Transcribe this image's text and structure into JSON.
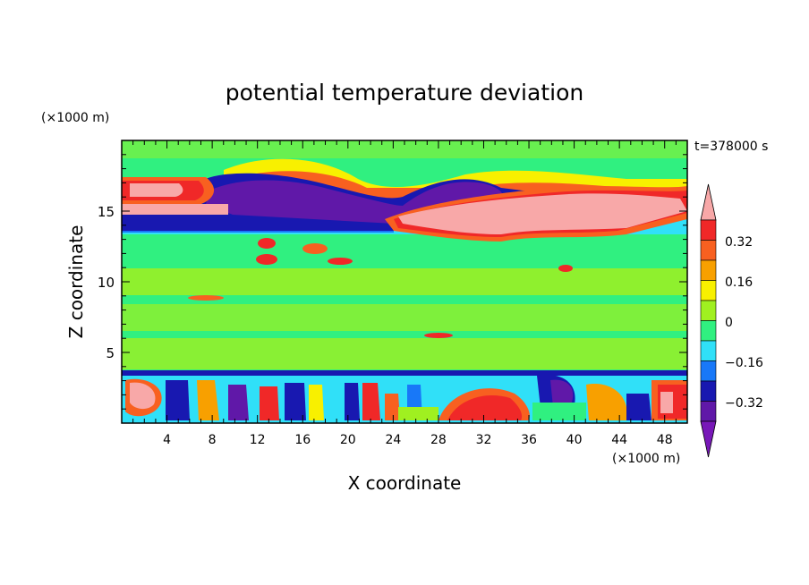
{
  "chart_data": {
    "type": "heatmap",
    "title": "potential temperature deviation",
    "time_label": "t=378000 s",
    "xlabel": "X coordinate",
    "ylabel": "Z coordinate",
    "x_unit": "(×1000 m)",
    "y_unit": "(×1000 m)",
    "xlim": [
      0,
      50
    ],
    "ylim": [
      0,
      20
    ],
    "x_ticks": [
      "4",
      "8",
      "12",
      "16",
      "20",
      "24",
      "28",
      "32",
      "36",
      "40",
      "44",
      "48"
    ],
    "y_ticks": [
      "5",
      "10",
      "15"
    ],
    "colorbar": {
      "labels": [
        "0.32",
        "0.16",
        "0",
        "−0.16",
        "−0.32"
      ],
      "levels": [
        0.32,
        0.16,
        0,
        -0.16,
        -0.32
      ],
      "colors": [
        "#f8a8a8",
        "#f02828",
        "#f86020",
        "#f8a000",
        "#f8f000",
        "#a0f020",
        "#30f080",
        "#30e0f8",
        "#1878f8",
        "#1818b0",
        "#6018a8",
        "#7818b8"
      ]
    },
    "background": "#30f080"
  }
}
